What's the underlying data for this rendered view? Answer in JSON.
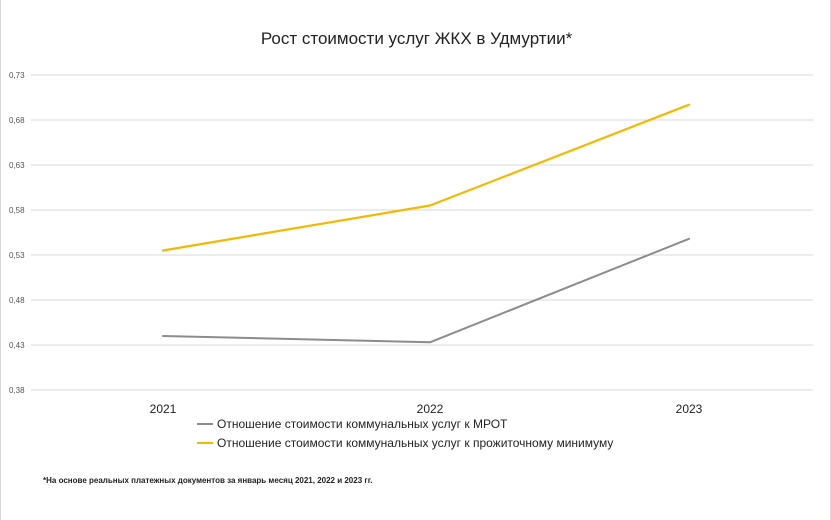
{
  "colors": {
    "series_gray": "#8c8c8c",
    "series_yellow": "#f5b800",
    "grid": "#d9d9d9"
  },
  "chart_data": {
    "type": "line",
    "title": "Рост стоимости услуг ЖКХ в Удмуртии*",
    "categories": [
      "2021",
      "2022",
      "2023"
    ],
    "y_ticks": [
      "0,38",
      "0,43",
      "0,48",
      "0,53",
      "0,58",
      "0,63",
      "0,68",
      "0,73"
    ],
    "ylim": [
      0.38,
      0.73
    ],
    "grid": true,
    "legend_position": "bottom",
    "series": [
      {
        "name": "Отношение стоимости коммунальных услуг к МРОТ",
        "color": "#8c8c8c",
        "values": [
          0.44,
          0.433,
          0.548
        ]
      },
      {
        "name": "Отношение стоимости коммунальных услуг к прожиточному минимуму",
        "color": "#f5b800",
        "values": [
          0.535,
          0.585,
          0.697
        ]
      }
    ],
    "footnote": "*На основе реальных платежных документов за январь месяц 2021,  2022  и 2023  гг."
  }
}
